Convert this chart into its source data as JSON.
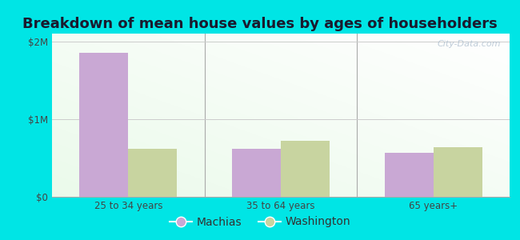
{
  "title": "Breakdown of mean house values by ages of householders",
  "categories": [
    "25 to 34 years",
    "35 to 64 years",
    "65 years+"
  ],
  "machias_values": [
    1850000,
    620000,
    570000
  ],
  "washington_values": [
    620000,
    720000,
    640000
  ],
  "machias_color": "#c9a8d4",
  "washington_color": "#c8d4a0",
  "background_color": "#00e5e5",
  "yticks": [
    0,
    1000000,
    2000000
  ],
  "ytick_labels": [
    "$0",
    "$1M",
    "$2M"
  ],
  "ylim": [
    0,
    2100000
  ],
  "bar_width": 0.32,
  "legend_labels": [
    "Machias",
    "Washington"
  ],
  "title_fontsize": 13,
  "tick_fontsize": 8.5,
  "legend_fontsize": 10,
  "watermark": "City-Data.com",
  "separator_color": "#aaaaaa",
  "grid_color": "#cccccc"
}
